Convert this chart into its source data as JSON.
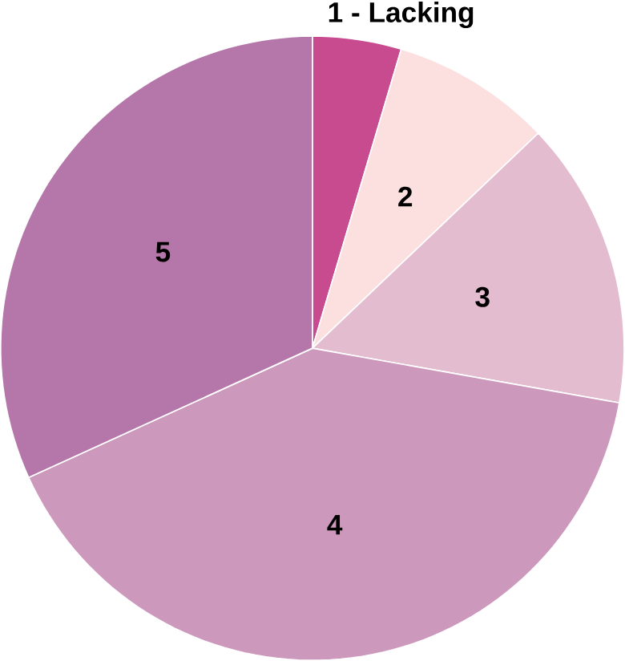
{
  "chart_data": {
    "type": "pie",
    "categories": [
      "1 - Lacking",
      "2",
      "3",
      "4",
      "5"
    ],
    "values": [
      4.6,
      8.3,
      14.9,
      40.4,
      31.8
    ],
    "colors": [
      "#c94b8f",
      "#fce0e0",
      "#e4bcd0",
      "#cc98bc",
      "#b577aa"
    ]
  }
}
